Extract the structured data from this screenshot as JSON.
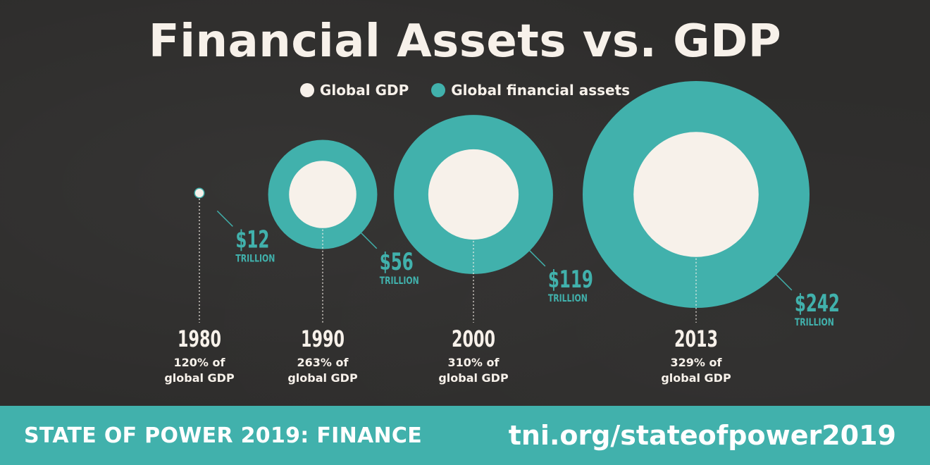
{
  "title": "Financial Assets vs. GDP",
  "legend": {
    "gdp": "Global GDP",
    "assets": "Global financial assets"
  },
  "colors": {
    "background": "#2e2d2c",
    "gdp": "#f7f1ea",
    "assets": "#41b1ac",
    "footer": "#41b1ac"
  },
  "footer": {
    "left": "STATE OF POWER 2019: FINANCE",
    "right": "tni.org/stateofpower2019"
  },
  "chart_data": {
    "type": "bubble",
    "title": "Financial Assets vs. GDP",
    "series": [
      {
        "name": "Global GDP"
      },
      {
        "name": "Global financial assets"
      }
    ],
    "units": "TRILLION",
    "points": [
      {
        "year": "1980",
        "assets": 12,
        "assets_label": "$12",
        "pct_label": "120% of",
        "pct_label2": "global GDP",
        "pct": 120
      },
      {
        "year": "1990",
        "assets": 56,
        "assets_label": "$56",
        "pct_label": "263% of",
        "pct_label2": "global GDP",
        "pct": 263
      },
      {
        "year": "2000",
        "assets": 119,
        "assets_label": "$119",
        "pct_label": "310% of",
        "pct_label2": "global GDP",
        "pct": 310
      },
      {
        "year": "2013",
        "assets": 242,
        "assets_label": "$242",
        "pct_label": "329% of",
        "pct_label2": "global GDP",
        "pct": 329
      }
    ]
  }
}
